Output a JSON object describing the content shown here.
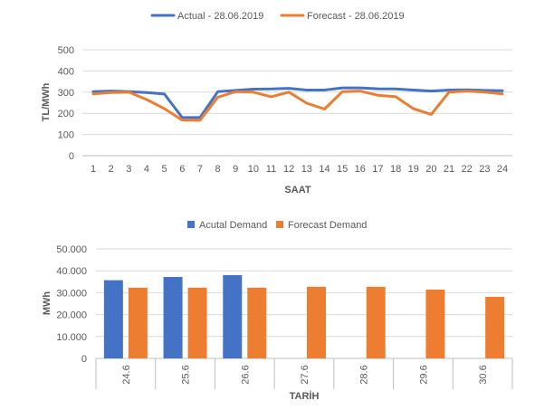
{
  "chart_data": [
    {
      "type": "line",
      "x": [
        1,
        2,
        3,
        4,
        5,
        6,
        7,
        8,
        9,
        10,
        11,
        12,
        13,
        14,
        15,
        16,
        17,
        18,
        19,
        20,
        21,
        22,
        23,
        24
      ],
      "xlabel": "SAAT",
      "ylabel": "TL/MWh",
      "ylim": [
        0,
        500
      ],
      "yticks": [
        "0",
        "100",
        "200",
        "300",
        "400",
        "500"
      ],
      "grid": true,
      "legend_position": "top",
      "series": [
        {
          "name": "Actual - 28.06.2019",
          "color": "#4472C4",
          "values": [
            302,
            305,
            302,
            298,
            291,
            180,
            180,
            302,
            308,
            314,
            315,
            318,
            310,
            310,
            320,
            320,
            316,
            315,
            310,
            305,
            310,
            311,
            308,
            307
          ]
        },
        {
          "name": "Forecast - 28.06.2019",
          "color": "#ED7D31",
          "values": [
            292,
            298,
            300,
            265,
            222,
            168,
            167,
            276,
            302,
            300,
            278,
            300,
            248,
            220,
            302,
            305,
            285,
            278,
            222,
            195,
            300,
            305,
            300,
            292
          ]
        }
      ]
    },
    {
      "type": "bar",
      "categories": [
        "24.6",
        "25.6",
        "26.6",
        "27.6",
        "28.6",
        "29.6",
        "30.6"
      ],
      "xlabel": "TARİH",
      "ylabel": "MWh",
      "ylim": [
        0,
        50000
      ],
      "yticks": [
        "0",
        "10.000",
        "20.000",
        "30.000",
        "40.000",
        "50.000"
      ],
      "grid": true,
      "legend_position": "top",
      "series": [
        {
          "name": "Acutal Demand",
          "color": "#4472C4",
          "values": [
            35700,
            37200,
            38000,
            null,
            null,
            null,
            null
          ]
        },
        {
          "name": "Forecast Demand",
          "color": "#ED7D31",
          "values": [
            32300,
            32300,
            32300,
            32700,
            32700,
            31400,
            28100
          ]
        }
      ]
    }
  ],
  "colors": {
    "grid": "#D9D9D9",
    "axis": "#BFBFBF",
    "text": "#595959"
  }
}
